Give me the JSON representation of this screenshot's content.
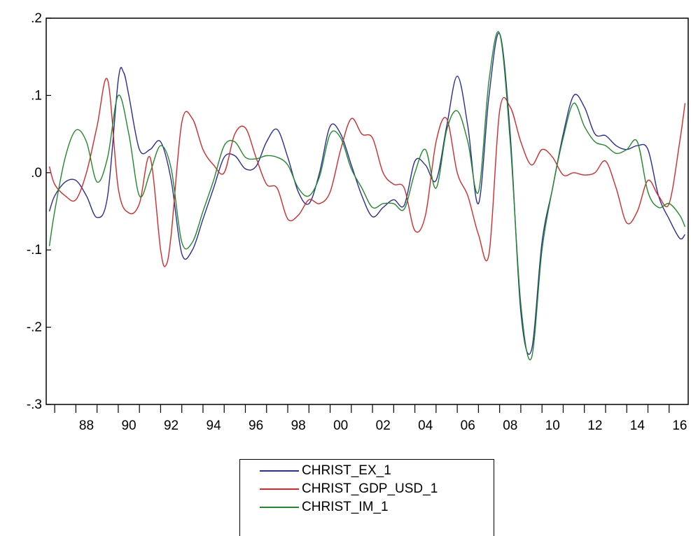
{
  "chart_data": {
    "type": "line",
    "title": "",
    "xlabel": "",
    "ylabel": "",
    "ylim": [
      -0.3,
      0.2
    ],
    "xlim": [
      1986.6,
      2016.9
    ],
    "y_ticks": [
      0.2,
      0.1,
      0.0,
      -0.1,
      -0.2,
      -0.3
    ],
    "y_tick_labels": [
      ".2",
      ".1",
      ".0",
      "-.1",
      "-.2",
      "-.3"
    ],
    "x_tick_labels": [
      "88",
      "90",
      "92",
      "94",
      "96",
      "98",
      "00",
      "02",
      "04",
      "06",
      "08",
      "10",
      "12",
      "14",
      "16"
    ],
    "x_tick_years": [
      1988,
      1990,
      1992,
      1994,
      1996,
      1998,
      2000,
      2002,
      2004,
      2006,
      2008,
      2010,
      2012,
      2014,
      2016
    ],
    "grid": false,
    "legend_position": "bottom",
    "series": [
      {
        "name": "CHRIST_EX_1",
        "color": "#2b2b9c",
        "x": [
          1986.75,
          1987.0,
          1987.5,
          1988.0,
          1988.5,
          1989.0,
          1989.5,
          1990.0,
          1990.25,
          1990.5,
          1991.0,
          1991.5,
          1992.0,
          1992.5,
          1993.0,
          1993.5,
          1994.0,
          1994.5,
          1995.0,
          1995.5,
          1996.0,
          1996.5,
          1997.0,
          1997.5,
          1998.0,
          1998.5,
          1999.0,
          1999.5,
          2000.0,
          2000.5,
          2001.0,
          2001.5,
          2002.0,
          2002.5,
          2003.0,
          2003.5,
          2004.0,
          2004.5,
          2005.0,
          2005.5,
          2006.0,
          2006.5,
          2007.0,
          2007.5,
          2008.0,
          2008.5,
          2009.0,
          2009.5,
          2010.0,
          2010.5,
          2011.0,
          2011.5,
          2012.0,
          2012.5,
          2013.0,
          2013.5,
          2014.0,
          2014.5,
          2015.0,
          2015.5,
          2016.0,
          2016.5,
          2016.75
        ],
        "y": [
          -0.05,
          -0.03,
          -0.012,
          -0.01,
          -0.03,
          -0.058,
          -0.03,
          0.12,
          0.13,
          0.1,
          0.03,
          0.03,
          0.04,
          -0.01,
          -0.105,
          -0.1,
          -0.06,
          -0.02,
          0.02,
          0.022,
          0.005,
          0.008,
          0.04,
          0.056,
          0.02,
          -0.025,
          -0.04,
          0.0,
          0.06,
          0.05,
          0.01,
          -0.03,
          -0.057,
          -0.045,
          -0.035,
          -0.042,
          0.015,
          0.01,
          -0.01,
          0.06,
          0.125,
          0.06,
          -0.04,
          0.1,
          0.18,
          0.05,
          -0.18,
          -0.23,
          -0.09,
          -0.02,
          0.05,
          0.1,
          0.085,
          0.05,
          0.048,
          0.035,
          0.03,
          0.035,
          0.03,
          -0.03,
          -0.06,
          -0.085,
          -0.08
        ]
      },
      {
        "name": "CHRIST_GDP_USD_1",
        "color": "#d42a2a",
        "x": [
          1986.75,
          1987.0,
          1987.5,
          1988.0,
          1988.5,
          1989.0,
          1989.5,
          1990.0,
          1990.5,
          1991.0,
          1991.5,
          1992.0,
          1992.25,
          1992.5,
          1993.0,
          1993.5,
          1994.0,
          1994.5,
          1995.0,
          1995.5,
          1996.0,
          1996.5,
          1997.0,
          1997.5,
          1998.0,
          1998.5,
          1999.0,
          1999.5,
          2000.0,
          2000.5,
          2001.0,
          2001.5,
          2002.0,
          2002.5,
          2003.0,
          2003.5,
          2004.0,
          2004.5,
          2005.0,
          2005.5,
          2006.0,
          2006.5,
          2007.0,
          2007.5,
          2008.0,
          2008.5,
          2009.0,
          2009.5,
          2010.0,
          2010.5,
          2011.0,
          2011.5,
          2012.0,
          2012.5,
          2013.0,
          2013.5,
          2014.0,
          2014.5,
          2015.0,
          2015.5,
          2016.0,
          2016.5,
          2016.75
        ],
        "y": [
          0.008,
          -0.015,
          -0.03,
          -0.035,
          0.0,
          0.06,
          0.12,
          -0.02,
          -0.052,
          -0.04,
          0.02,
          -0.1,
          -0.12,
          -0.08,
          0.065,
          0.07,
          0.03,
          0.01,
          0.0,
          0.05,
          0.058,
          0.02,
          -0.015,
          -0.02,
          -0.06,
          -0.055,
          -0.035,
          -0.04,
          -0.025,
          0.03,
          0.07,
          0.05,
          0.045,
          0.0,
          -0.015,
          -0.02,
          -0.075,
          -0.055,
          0.04,
          0.07,
          0.0,
          -0.03,
          -0.08,
          -0.105,
          0.08,
          0.085,
          0.04,
          0.01,
          0.03,
          0.02,
          -0.003,
          0.0,
          -0.003,
          0.0,
          0.015,
          -0.02,
          -0.065,
          -0.05,
          -0.01,
          -0.03,
          -0.04,
          0.04,
          0.09
        ]
      },
      {
        "name": "CHRIST_IM_1",
        "color": "#1f8a2a",
        "x": [
          1986.75,
          1987.0,
          1987.5,
          1988.0,
          1988.5,
          1989.0,
          1989.5,
          1990.0,
          1990.5,
          1991.0,
          1991.5,
          1992.0,
          1992.5,
          1993.0,
          1993.5,
          1994.0,
          1994.5,
          1995.0,
          1995.5,
          1996.0,
          1996.5,
          1997.0,
          1997.5,
          1998.0,
          1998.5,
          1999.0,
          1999.5,
          2000.0,
          2000.5,
          2001.0,
          2001.5,
          2002.0,
          2002.5,
          2003.0,
          2003.5,
          2004.0,
          2004.5,
          2005.0,
          2005.5,
          2006.0,
          2006.5,
          2007.0,
          2007.5,
          2008.0,
          2008.5,
          2009.0,
          2009.5,
          2010.0,
          2010.5,
          2011.0,
          2011.5,
          2012.0,
          2012.5,
          2013.0,
          2013.5,
          2014.0,
          2014.5,
          2015.0,
          2015.5,
          2016.0,
          2016.5,
          2016.75
        ],
        "y": [
          -0.095,
          -0.05,
          0.02,
          0.055,
          0.04,
          -0.012,
          0.02,
          0.1,
          0.05,
          -0.03,
          0.0,
          0.035,
          0.005,
          -0.09,
          -0.09,
          -0.05,
          -0.01,
          0.035,
          0.04,
          0.02,
          0.018,
          0.022,
          0.02,
          0.01,
          -0.02,
          -0.03,
          -0.005,
          0.05,
          0.045,
          0.005,
          -0.02,
          -0.045,
          -0.04,
          -0.04,
          -0.047,
          0.0,
          0.03,
          -0.02,
          0.055,
          0.08,
          0.04,
          -0.025,
          0.12,
          0.18,
          0.04,
          -0.17,
          -0.24,
          -0.1,
          -0.02,
          0.045,
          0.09,
          0.06,
          0.04,
          0.035,
          0.025,
          0.03,
          0.04,
          -0.025,
          -0.045,
          -0.04,
          -0.055,
          -0.07
        ]
      }
    ]
  },
  "legend": {
    "items": [
      "CHRIST_EX_1",
      "CHRIST_GDP_USD_1",
      "CHRIST_IM_1"
    ]
  }
}
